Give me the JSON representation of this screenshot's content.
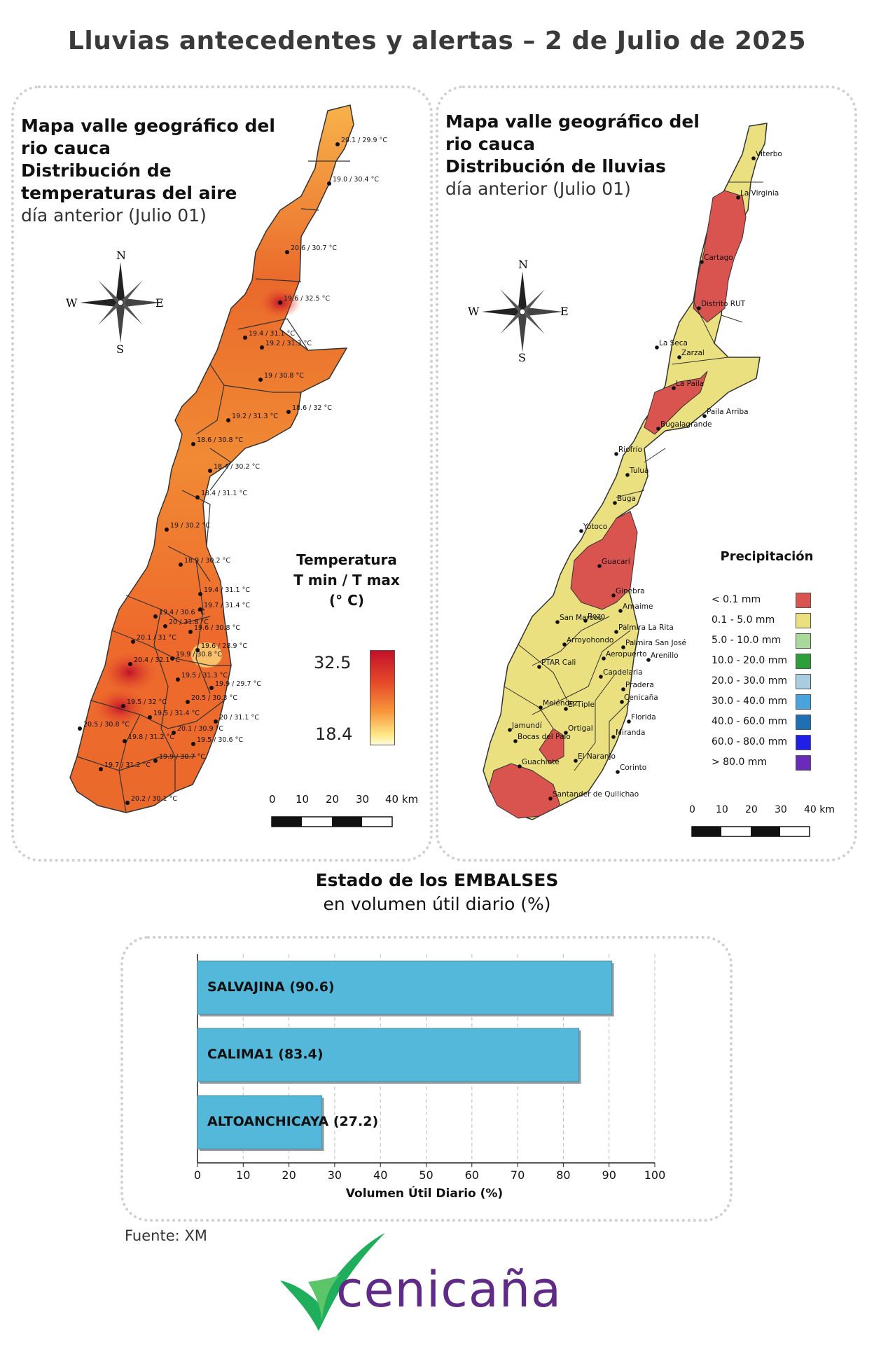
{
  "title": "Lluvias antecedentes y alertas – 2 de Julio de 2025",
  "left_panel": {
    "title_lines": [
      "Mapa valle geográfico del",
      "rio cauca",
      "Distribución de",
      "temperaturas del aire"
    ],
    "subtitle": "día anterior (Julio 01)",
    "compass": {
      "n": "N",
      "s": "S",
      "e": "E",
      "w": "W"
    },
    "legend_title_lines": [
      "Temperatura",
      "T min / T max",
      "(° C)"
    ],
    "legend_max": "32.5",
    "legend_min": "18.4",
    "scale_labels": [
      "0",
      "10",
      "20",
      "30",
      "40 km"
    ],
    "points": [
      {
        "label": "20.1 / 29.9 °C"
      },
      {
        "label": "19.0 / 30.4 °C"
      },
      {
        "label": "20.6 / 30.7 °C"
      },
      {
        "label": "19.6 / 32.5 °C"
      },
      {
        "label": "19.4 / 31.1 °C"
      },
      {
        "label": "19.2 / 31.3 °C"
      },
      {
        "label": "19 / 30.8 °C"
      },
      {
        "label": "18.6 / 32 °C"
      },
      {
        "label": "19.2 / 31.3 °C"
      },
      {
        "label": "18.6 / 30.8 °C"
      },
      {
        "label": "18.4 / 30.2 °C"
      },
      {
        "label": "18.4 / 31.1 °C"
      },
      {
        "label": "19 / 30.2 °C"
      },
      {
        "label": "18.9 / 30.2 °C"
      },
      {
        "label": "19.4 / 31.1 °C"
      },
      {
        "label": "19.4 / 30.6 °C"
      },
      {
        "label": "19.7 / 31.4 °C"
      },
      {
        "label": "20 / 31.8 °C"
      },
      {
        "label": "19.6 / 30.8 °C"
      },
      {
        "label": "20.1 / 31 °C"
      },
      {
        "label": "19.6 / 28.9 °C"
      },
      {
        "label": "19.9 / 30.8 °C"
      },
      {
        "label": "20.4 / 32.1 °C"
      },
      {
        "label": "19.5 / 31.3 °C"
      },
      {
        "label": "19.9 / 29.7 °C"
      },
      {
        "label": "20.5 / 30.3 °C"
      },
      {
        "label": "19.5 / 32 °C"
      },
      {
        "label": "19.5 / 31.4 °C"
      },
      {
        "label": "20 / 31.1 °C"
      },
      {
        "label": "20.5 / 30.8 °C"
      },
      {
        "label": "19.8 / 31.2 °C"
      },
      {
        "label": "20.1 / 30.9 °C"
      },
      {
        "label": "19.5 / 30.6 °C"
      },
      {
        "label": "19.7 / 31.2 °C"
      },
      {
        "label": "19.9 / 30.7 °C"
      },
      {
        "label": "20.2 / 30.1 °C"
      }
    ]
  },
  "right_panel": {
    "title_lines": [
      "Mapa valle geográfico del",
      "rio cauca",
      "Distribución de lluvias"
    ],
    "subtitle": "día anterior (Julio 01)",
    "compass": {
      "n": "N",
      "s": "S",
      "e": "E",
      "w": "W"
    },
    "legend_title": "Precipitación",
    "legend_items": [
      {
        "label": "< 0.1 mm",
        "color": "#d9534f"
      },
      {
        "label": "0.1 - 5.0 mm",
        "color": "#ebe07f"
      },
      {
        "label": "5.0 - 10.0 mm",
        "color": "#a8d99a"
      },
      {
        "label": "10.0 - 20.0 mm",
        "color": "#2e9e3a"
      },
      {
        "label": "20.0 - 30.0 mm",
        "color": "#a8cde0"
      },
      {
        "label": "30.0 - 40.0 mm",
        "color": "#4aa3dc"
      },
      {
        "label": "40.0 - 60.0 mm",
        "color": "#1f6fb5"
      },
      {
        "label": "60.0 - 80.0 mm",
        "color": "#1f1fe6"
      },
      {
        "label": "> 80.0 mm",
        "color": "#6a2bb8"
      }
    ],
    "scale_labels": [
      "0",
      "10",
      "20",
      "30",
      "40 km"
    ],
    "stations": [
      "Viterbo",
      "La Virginia",
      "Cartago",
      "Distrito RUT",
      "La Seca",
      "Zarzal",
      "La Paila",
      "Paila Arriba",
      "Bugalagrande",
      "Riofrío",
      "Tuluá",
      "Buga",
      "Yotoco",
      "Guacarí",
      "Ginebra",
      "Amaime",
      "San Marcos",
      "Rozo",
      "Palmira La Rita",
      "Arroyohondo",
      "Palmira San José",
      "Aeropuerto",
      "Arenillo",
      "PTAR Cali",
      "Candelaria",
      "Pradera",
      "Cenicaña",
      "Meléndez",
      "El Tiple",
      "Florida",
      "Jamundí",
      "Bocas del Palo",
      "Ortigal",
      "Miranda",
      "El Naranjo",
      "Guachinte",
      "Corinto",
      "Santander de Quilichao"
    ]
  },
  "embalses": {
    "title_bold": "Estado de los EMBALSES",
    "title_normal": "en volumen útil diario (%)",
    "chart_data": {
      "type": "bar",
      "orientation": "horizontal",
      "categories": [
        "SALVAJINA",
        "CALIMA1",
        "ALTOANCHICAYA"
      ],
      "values": [
        90.6,
        83.4,
        27.2
      ],
      "bar_labels": [
        "SALVAJINA (90.6)",
        "CALIMA1 (83.4)",
        "ALTOANCHICAYA (27.2)"
      ],
      "xlabel": "Volumen Útil Diario (%)",
      "xlim": [
        0,
        100
      ],
      "xticks": [
        0,
        10,
        20,
        30,
        40,
        50,
        60,
        70,
        80,
        90,
        100
      ],
      "bar_color": "#54b8da",
      "grid": "vertical dashed"
    }
  },
  "source": "Fuente: XM",
  "logo": {
    "text": "cenicaña",
    "text_color": "#5f2b86",
    "mark_color": "#1fae5b"
  }
}
